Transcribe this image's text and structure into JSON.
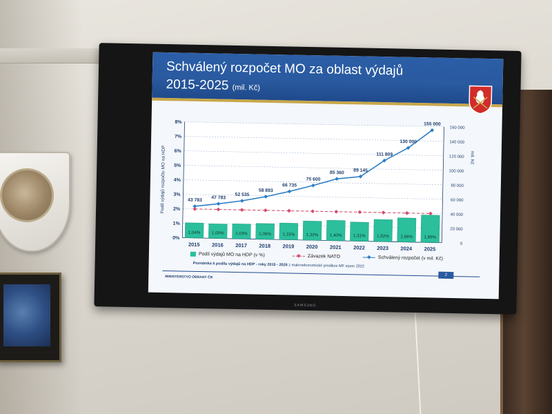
{
  "slide": {
    "title_line1": "Schválený rozpočet MO za oblast výdajů",
    "title_line2": "2015-2025",
    "title_unit": "(mil. Kč)",
    "ministry": "MINISTERSTVO OBRANY ČR",
    "page_number": "2",
    "note_bold": "Poznámka k podílu výdajů na HDP - roky 2015 - 2025",
    "note_rest": " z makroekonomické predikce MF srpen 2022",
    "tv_brand": "SAMSUNG"
  },
  "colors": {
    "header_blue": "#2a5aa0",
    "bar_green": "#2bbf9c",
    "nato_red": "#d84a6a",
    "budget_blue": "#2f7fc4",
    "accent_gold": "#c8a74a"
  },
  "chart_data": {
    "type": "bar",
    "categories": [
      "2015",
      "2016",
      "2017",
      "2018",
      "2019",
      "2020",
      "2021",
      "2022",
      "2023",
      "2024",
      "2025"
    ],
    "left_axis": {
      "label": "Podíl výdajů rozpočtu MO na HDP",
      "ticks": [
        "0%",
        "1%",
        "2%",
        "3%",
        "4%",
        "5%",
        "6%",
        "7%",
        "8%"
      ],
      "range": [
        0,
        8
      ]
    },
    "right_axis": {
      "label": "mil. Kč",
      "ticks": [
        "0",
        "20 000",
        "40 000",
        "60 000",
        "80 000",
        "100 000",
        "120 000",
        "140 000",
        "160 000"
      ],
      "range": [
        0,
        160000
      ]
    },
    "series": [
      {
        "name": "Podíl výdajů MO na HDP (v %)",
        "type": "bar",
        "axis": "left",
        "values": [
          1.04,
          1.0,
          1.03,
          1.09,
          1.15,
          1.32,
          1.4,
          1.31,
          1.52,
          1.66,
          1.89
        ],
        "labels": [
          "1,04%",
          "1,00%",
          "1,03%",
          "1,09%",
          "1,15%",
          "1,32%",
          "1,40%",
          "1,31%",
          "1,52%",
          "1,66%",
          "1,89%"
        ]
      },
      {
        "name": "Závazek NATO",
        "type": "line-dashed",
        "axis": "left",
        "values": [
          2,
          2,
          2,
          2,
          2,
          2,
          2,
          2,
          2,
          2,
          2
        ]
      },
      {
        "name": "Schválený rozpočet (v mil. Kč)",
        "type": "line",
        "axis": "right",
        "values": [
          43783,
          47783,
          52535,
          58893,
          66735,
          75600,
          85360,
          89145,
          111809,
          130000,
          155000
        ],
        "labels": [
          "43 783",
          "47 783",
          "52 535",
          "58 893",
          "66 735",
          "75 600",
          "85 360",
          "89 145",
          "111 809",
          "130 000",
          "155 000"
        ]
      }
    ],
    "grid": true,
    "legend": "bottom"
  }
}
